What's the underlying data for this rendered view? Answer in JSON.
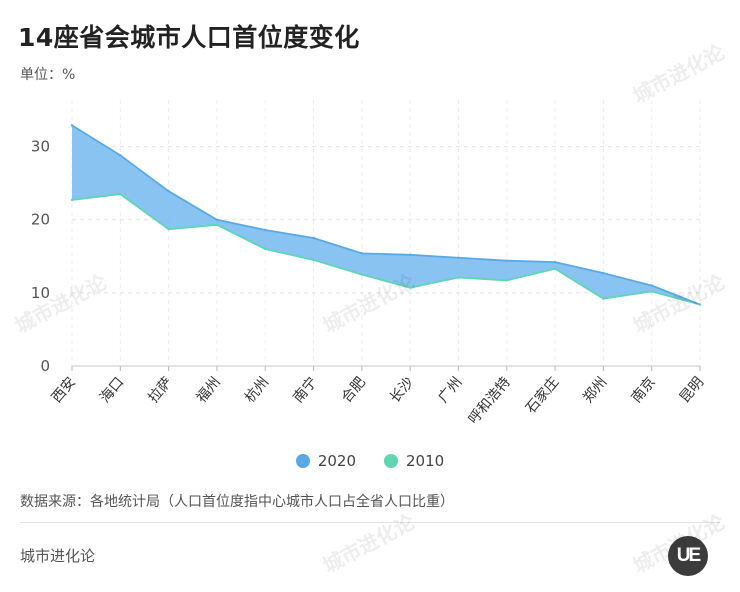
{
  "title": "14座省会城市人口首位度变化",
  "unit_label": "单位：%",
  "source": "数据来源：各地统计局（人口首位度指中心城市人口占全省人口比重）",
  "brand": "城市进化论",
  "logo_text": "UE",
  "watermark": "城市进化论",
  "colors": {
    "series_2020": "#5aa9e6",
    "series_2010": "#5ed6b0",
    "fill": "#7bbcf0"
  },
  "chart_data": {
    "type": "area",
    "title": "14座省会城市人口首位度变化",
    "xlabel": "",
    "ylabel": "单位：%",
    "categories": [
      "西安",
      "海口",
      "拉萨",
      "福州",
      "杭州",
      "南宁",
      "合肥",
      "长沙",
      "广州",
      "呼和浩特",
      "石家庄",
      "郑州",
      "南京",
      "昆明"
    ],
    "yticks": [
      0,
      10,
      20,
      30
    ],
    "ylim": [
      0,
      35
    ],
    "grid": true,
    "legend_position": "bottom",
    "series": [
      {
        "name": "2020",
        "values": [
          32.9,
          28.8,
          23.9,
          20.0,
          18.6,
          17.5,
          15.4,
          15.2,
          14.8,
          14.4,
          14.2,
          12.7,
          11.0,
          8.4
        ]
      },
      {
        "name": "2010",
        "values": [
          22.7,
          23.5,
          18.7,
          19.3,
          16.0,
          14.5,
          12.5,
          10.7,
          12.1,
          11.7,
          13.3,
          9.2,
          10.2,
          8.4
        ]
      }
    ]
  }
}
